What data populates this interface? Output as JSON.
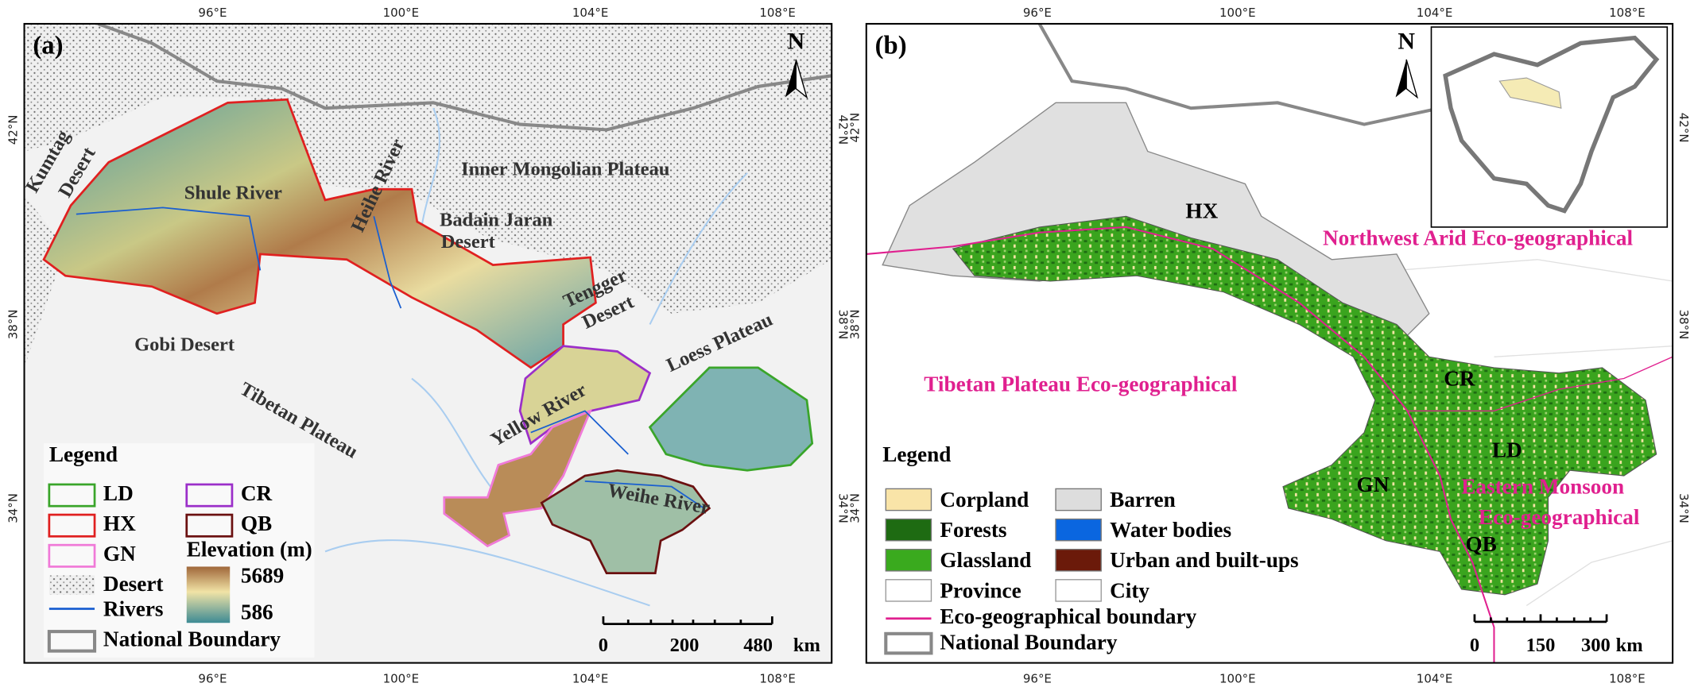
{
  "panel_a": {
    "label": "(a)",
    "north": "N",
    "lon_labels": [
      "96°E",
      "100°E",
      "104°E",
      "108°E"
    ],
    "lat_labels": [
      "42°N",
      "38°N",
      "34°N"
    ],
    "places": [
      "Kumtag",
      "Desert",
      "Shule River",
      "Heihe River",
      "Inner Mongolian Plateau",
      "Badain Jaran",
      "Desert",
      "Tengger",
      "Desert",
      "Loess Plateau",
      "Gobi Desert",
      "Tibetan Plateau",
      "Yellow River",
      "Weihe River"
    ],
    "legend": {
      "title": "Legend",
      "regions": [
        "LD",
        "HX",
        "GN",
        "CR",
        "QB"
      ],
      "elevation_title": "Elevation (m)",
      "elevation_max": 5689,
      "elevation_min": 586,
      "desert": "Desert",
      "rivers": "Rivers",
      "national_boundary": "National Boundary"
    },
    "scale_bar": {
      "ticks": [
        0,
        200,
        480
      ],
      "unit": "km"
    }
  },
  "panel_b": {
    "label": "(b)",
    "north": "N",
    "lon_labels": [
      "96°E",
      "100°E",
      "104°E",
      "108°E"
    ],
    "lat_labels": [
      "42°N",
      "38°N",
      "34°N"
    ],
    "regions": [
      "HX",
      "CR",
      "LD",
      "GN",
      "QB"
    ],
    "eco_regions": [
      "Northwest Arid Eco-geographical",
      "Tibetan Plateau Eco-geographical",
      "Eastern Monsoon",
      "Eco-geographical"
    ],
    "legend": {
      "title": "Legend",
      "items": [
        "Corpland",
        "Forests",
        "Glassland",
        "Province",
        "Barren",
        "Water bodies",
        "Urban and built-ups",
        "City",
        "Eco-geographical boundary",
        "National Boundary"
      ]
    },
    "scale_bar": {
      "ticks": [
        0,
        150,
        300
      ],
      "unit": "km"
    }
  }
}
